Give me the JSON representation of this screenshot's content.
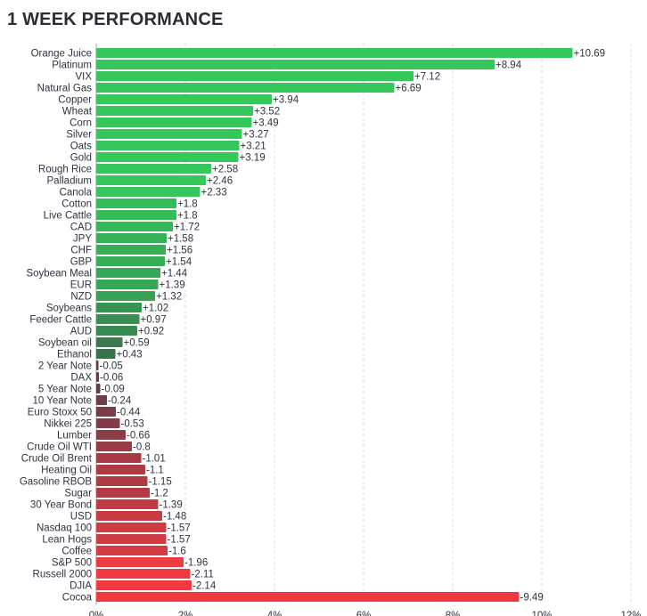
{
  "title": "1 WEEK PERFORMANCE",
  "chart_data": {
    "type": "bar",
    "orientation": "horizontal",
    "title": "1 WEEK PERFORMANCE",
    "xlim": [
      0,
      12
    ],
    "x_ticks": [
      "0%",
      "2%",
      "4%",
      "6%",
      "8%",
      "10%",
      "12%"
    ],
    "grid": true,
    "colors": {
      "positive_strong": "#34c759",
      "positive_weak": "#3c5a4a",
      "negative_weak": "#5a3d48",
      "negative_strong": "#f03a40"
    },
    "categories": [
      "Orange Juice",
      "Platinum",
      "VIX",
      "Natural Gas",
      "Copper",
      "Wheat",
      "Corn",
      "Silver",
      "Oats",
      "Gold",
      "Rough Rice",
      "Palladium",
      "Canola",
      "Cotton",
      "Live Cattle",
      "CAD",
      "JPY",
      "CHF",
      "GBP",
      "Soybean Meal",
      "EUR",
      "NZD",
      "Soybeans",
      "Feeder Cattle",
      "AUD",
      "Soybean oil",
      "Ethanol",
      "2 Year Note",
      "DAX",
      "5 Year Note",
      "10 Year Note",
      "Euro Stoxx 50",
      "Nikkei 225",
      "Lumber",
      "Crude Oil WTI",
      "Crude Oil Brent",
      "Heating Oil",
      "Gasoline RBOB",
      "Sugar",
      "30 Year Bond",
      "USD",
      "Nasdaq 100",
      "Lean Hogs",
      "Coffee",
      "S&P 500",
      "Russell 2000",
      "DJIA",
      "Cocoa"
    ],
    "values": [
      10.69,
      8.94,
      7.12,
      6.69,
      3.94,
      3.52,
      3.49,
      3.27,
      3.21,
      3.19,
      2.58,
      2.46,
      2.33,
      1.8,
      1.8,
      1.72,
      1.58,
      1.56,
      1.54,
      1.44,
      1.39,
      1.32,
      1.02,
      0.97,
      0.92,
      0.59,
      0.43,
      -0.05,
      -0.06,
      -0.09,
      -0.24,
      -0.44,
      -0.53,
      -0.66,
      -0.8,
      -1.01,
      -1.1,
      -1.15,
      -1.2,
      -1.39,
      -1.48,
      -1.57,
      -1.57,
      -1.6,
      -1.96,
      -2.11,
      -2.14,
      -9.49
    ],
    "value_labels": [
      "+10.69",
      "+8.94",
      "+7.12",
      "+6.69",
      "+3.94",
      "+3.52",
      "+3.49",
      "+3.27",
      "+3.21",
      "+3.19",
      "+2.58",
      "+2.46",
      "+2.33",
      "+1.8",
      "+1.8",
      "+1.72",
      "+1.58",
      "+1.56",
      "+1.54",
      "+1.44",
      "+1.39",
      "+1.32",
      "+1.02",
      "+0.97",
      "+0.92",
      "+0.59",
      "+0.43",
      "-0.05",
      "-0.06",
      "-0.09",
      "-0.24",
      "-0.44",
      "-0.53",
      "-0.66",
      "-0.8",
      "-1.01",
      "-1.1",
      "-1.15",
      "-1.2",
      "-1.39",
      "-1.48",
      "-1.57",
      "-1.57",
      "-1.6",
      "-1.96",
      "-2.11",
      "-2.14",
      "-9.49"
    ]
  }
}
